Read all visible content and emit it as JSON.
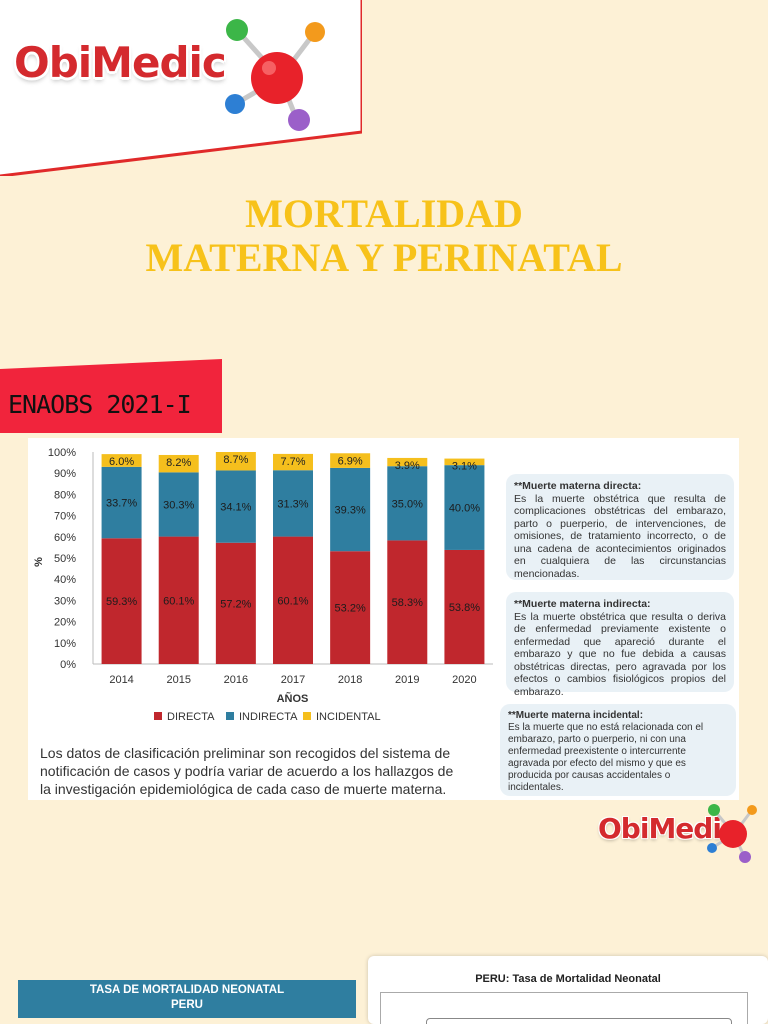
{
  "brand": {
    "name": "ObiMedic"
  },
  "title": {
    "line1": "MORTALIDAD",
    "line2": "MATERNA Y PERINATAL"
  },
  "banner": {
    "label": "ENAOBS 2021-I"
  },
  "colors": {
    "directa": "#c0272d",
    "indirecta": "#2f7ea0",
    "incidental": "#f5bf1d",
    "title": "#f7c21a",
    "brand_red": "#d42a2e"
  },
  "chart_data": {
    "type": "bar",
    "stacked": true,
    "categories": [
      "2014",
      "2015",
      "2016",
      "2017",
      "2018",
      "2019",
      "2020"
    ],
    "series": [
      {
        "name": "DIRECTA",
        "values": [
          59.3,
          60.1,
          57.2,
          60.1,
          53.2,
          58.3,
          53.8
        ],
        "labels": [
          "59.3%",
          "60.1%",
          "57.2%",
          "60.1%",
          "53.2%",
          "58.3%",
          "53.8%"
        ]
      },
      {
        "name": "INDIRECTA",
        "values": [
          33.7,
          30.3,
          34.1,
          31.3,
          39.3,
          35.0,
          40.0
        ],
        "labels": [
          "33.7%",
          "30.3%",
          "34.1%",
          "31.3%",
          "39.3%",
          "35.0%",
          "40.0%"
        ]
      },
      {
        "name": "INCIDENTAL",
        "values": [
          6.0,
          8.2,
          8.7,
          7.7,
          6.9,
          3.9,
          3.1
        ],
        "labels": [
          "6.0%",
          "8.2%",
          "8.7%",
          "7.7%",
          "6.9%",
          "3.9%",
          "3.1%"
        ]
      }
    ],
    "yticks": [
      "0%",
      "10%",
      "20%",
      "30%",
      "40%",
      "50%",
      "60%",
      "70%",
      "80%",
      "90%",
      "100%"
    ],
    "ylim": [
      0,
      100
    ],
    "ylabel": "%",
    "xlabel": "AÑOS",
    "legend_position": "bottom",
    "grid": false
  },
  "definitions": [
    {
      "term": "**Muerte materna directa:",
      "text": "Es la muerte obstétrica que resulta de complicaciones obstétricas del embarazo, parto o puerperio, de intervenciones, de omisiones, de tratamiento incorrecto, o de una cadena de acontecimientos originados en cualquiera de las circunstancias mencionadas."
    },
    {
      "term": "**Muerte materna indirecta:",
      "text": "Es la muerte obstétrica que resulta o deriva de enfermedad previamente existente o enfermedad que apareció durante el embarazo y que no fue debida a causas obstétricas directas, pero agravada por los efectos o cambios fisiológicos propios del embarazo."
    },
    {
      "term": "**Muerte materna incidental:",
      "text": "Es la muerte que no está relacionada con el embarazo, parto o puerperio, ni con una enfermedad preexistente o intercurrente agravada por efecto del mismo y que es producida por causas accidentales o incidentales."
    }
  ],
  "footnote": "Los datos de clasificación preliminar son recogidos del sistema de notificación de casos y podría variar de acuerdo a los hallazgos de la investigación epidemiológica de cada caso de muerte materna.",
  "bottom": {
    "tasa_line1": "TASA DE MORTALIDAD NEONATAL",
    "tasa_line2": "PERU",
    "peru_title": "PERU: Tasa de Mortalidad Neonatal"
  }
}
